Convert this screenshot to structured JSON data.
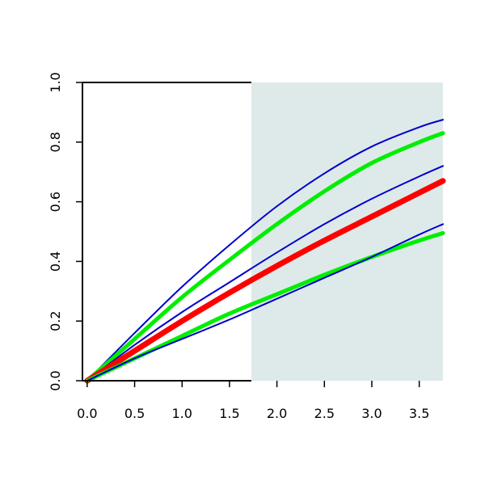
{
  "chart_data": {
    "type": "line",
    "title": "",
    "xlabel": "",
    "ylabel": "",
    "xlim": [
      -0.05,
      3.75
    ],
    "ylim": [
      0,
      1.0
    ],
    "x_ticks": [
      "0.0",
      "0.5",
      "1.0",
      "1.5",
      "2.0",
      "2.5",
      "3.0",
      "3.5"
    ],
    "y_ticks": [
      "0.0",
      "0.2",
      "0.4",
      "0.6",
      "0.8",
      "1.0"
    ],
    "shaded_region": {
      "x_from": 1.73,
      "x_to": 3.75,
      "color": "#deeaea"
    },
    "grid": false,
    "colors": {
      "blue": "#0000cc",
      "green": "#00ee00",
      "red": "#ff0000",
      "axis": "#000000"
    },
    "x": [
      0,
      0.5,
      1.0,
      1.5,
      2.0,
      2.5,
      3.0,
      3.5,
      3.75
    ],
    "series": [
      {
        "color": "#0000cc",
        "values": [
          0,
          0.16,
          0.315,
          0.455,
          0.585,
          0.695,
          0.785,
          0.85,
          0.875
        ]
      },
      {
        "color": "#00ee00",
        "values": [
          0,
          0.14,
          0.28,
          0.405,
          0.525,
          0.635,
          0.73,
          0.8,
          0.83
        ]
      },
      {
        "color": "#0000cc",
        "values": [
          0,
          0.12,
          0.23,
          0.33,
          0.43,
          0.525,
          0.61,
          0.685,
          0.72
        ]
      },
      {
        "color": "#ff0000",
        "values": [
          0,
          0.1,
          0.2,
          0.295,
          0.385,
          0.47,
          0.55,
          0.63,
          0.67
        ]
      },
      {
        "color": "#00ee00",
        "values": [
          0,
          0.075,
          0.15,
          0.225,
          0.29,
          0.355,
          0.415,
          0.47,
          0.495
        ]
      },
      {
        "color": "#0000cc",
        "values": [
          0,
          0.075,
          0.14,
          0.205,
          0.275,
          0.345,
          0.415,
          0.49,
          0.525
        ]
      }
    ]
  }
}
